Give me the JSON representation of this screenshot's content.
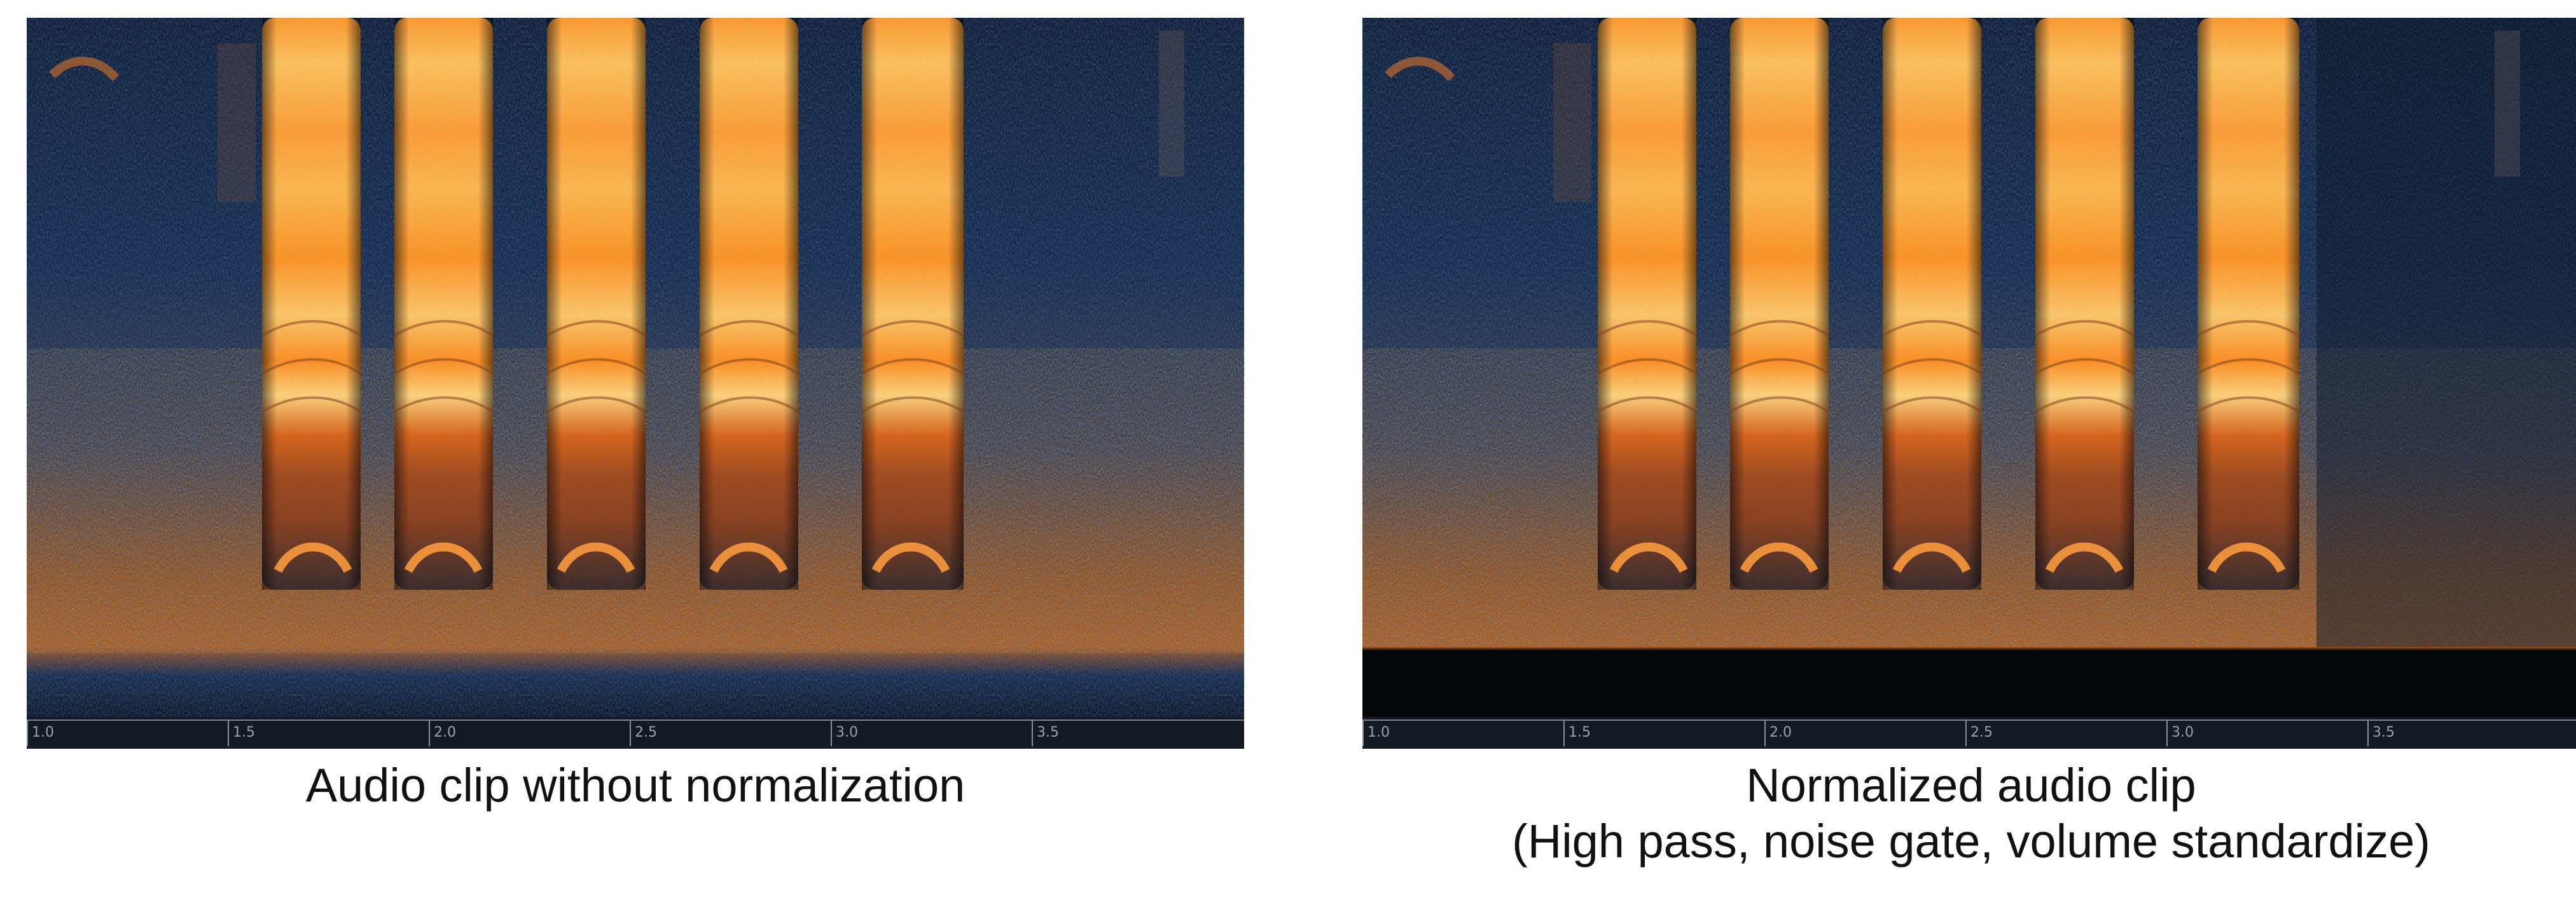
{
  "panels": [
    {
      "id": "original",
      "tick_labels": [
        "1.0",
        "1.5",
        "2.0",
        "2.5",
        "3.0",
        "3.5"
      ],
      "caption": {
        "line1": "Audio clip without normalization",
        "line2": ""
      },
      "normalized": false
    },
    {
      "id": "normalized",
      "tick_labels": [
        "1.0",
        "1.5",
        "2.0",
        "2.5",
        "3.0",
        "3.5"
      ],
      "caption": {
        "line1": "Normalized audio clip",
        "line2": "(High pass, noise gate, volume  standardize)"
      },
      "normalized": true
    }
  ],
  "colors": {
    "background_dark": "#0b1220",
    "noise_blue": "#1b3a6b",
    "call_orange": "#ff8a1e",
    "call_hot": "#ffd27a"
  }
}
